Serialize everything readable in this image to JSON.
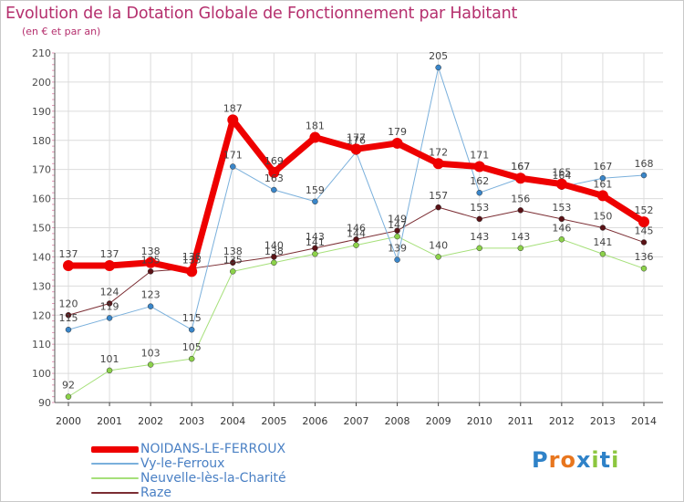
{
  "title": "Evolution de la Dotation Globale de Fonctionnement par Habitant",
  "subtitle": "(en € et par an)",
  "logo": {
    "text": "Proxiti",
    "letters": [
      "P",
      "r",
      "o",
      "x",
      "i",
      "t",
      "i"
    ],
    "colors": [
      "#2f82c8",
      "#e8761e",
      "#e8761e",
      "#2f82c8",
      "#8cc63f",
      "#2f82c8",
      "#8cc63f"
    ]
  },
  "chart_data": {
    "type": "line",
    "title": "Evolution de la Dotation Globale de Fonctionnement par Habitant",
    "ylabel": "(en € et par an)",
    "xlabel": "",
    "ylim": [
      90,
      210
    ],
    "yticks": [
      90,
      100,
      110,
      120,
      130,
      140,
      150,
      160,
      170,
      180,
      190,
      200,
      210
    ],
    "grid": true,
    "categories": [
      "2000",
      "2001",
      "2002",
      "2003",
      "2004",
      "2005",
      "2006",
      "2007",
      "2008",
      "2009",
      "2010",
      "2011",
      "2012",
      "2013",
      "2014"
    ],
    "series": [
      {
        "name": "Raze",
        "color": "#7b2d33",
        "marker": "#5a1216",
        "width": 1,
        "values": [
          120,
          124,
          135,
          136,
          138,
          140,
          143,
          146,
          149,
          157,
          153,
          156,
          153,
          150,
          145
        ],
        "labels": [
          "120",
          "124",
          "135",
          "136",
          "138",
          "140",
          "143",
          "146",
          "149",
          "157",
          "153",
          "156",
          "153",
          "150",
          "145"
        ]
      },
      {
        "name": "Neuvelle-lès-la-Charité",
        "color": "#a6e07a",
        "marker": "#8cd24a",
        "width": 1,
        "values": [
          92,
          101,
          103,
          105,
          135,
          138,
          141,
          144,
          147,
          140,
          143,
          143,
          146,
          141,
          136
        ],
        "labels": [
          "92",
          "101",
          "103",
          "105",
          "135",
          "138",
          "141",
          "144",
          "147",
          "140",
          "143",
          "143",
          "146",
          "141",
          "136"
        ]
      },
      {
        "name": "Vy-le-Ferroux",
        "color": "#7ab0dc",
        "marker": "#3a86c9",
        "width": 1,
        "values": [
          115,
          119,
          123,
          115,
          171,
          163,
          159,
          176,
          139,
          205,
          162,
          167,
          164,
          167,
          168
        ],
        "labels": [
          "115",
          "119",
          "123",
          "115",
          "171",
          "163",
          "159",
          "176",
          "139",
          "205",
          "162",
          "167",
          "164",
          "167",
          "168"
        ]
      },
      {
        "name": "NOIDANS-LE-FERROUX",
        "color": "#ee0000",
        "marker": "#ee0000",
        "width": 7,
        "values": [
          137,
          137,
          138,
          135,
          187,
          169,
          181,
          177,
          179,
          172,
          171,
          167,
          165,
          161,
          152
        ],
        "labels": [
          "137",
          "137",
          "138",
          "135",
          "187",
          "169",
          "181",
          "177",
          "179",
          "172",
          "171",
          "167",
          "165",
          "161",
          "152"
        ]
      }
    ]
  },
  "legend": [
    {
      "name": "NOIDANS-LE-FERROUX",
      "color": "#ee0000",
      "thickness": 7
    },
    {
      "name": "Vy-le-Ferroux",
      "color": "#7ab0dc",
      "thickness": 1
    },
    {
      "name": "Neuvelle-lès-la-Charité",
      "color": "#a6e07a",
      "thickness": 1
    },
    {
      "name": "Raze",
      "color": "#7b2d33",
      "thickness": 1
    }
  ]
}
